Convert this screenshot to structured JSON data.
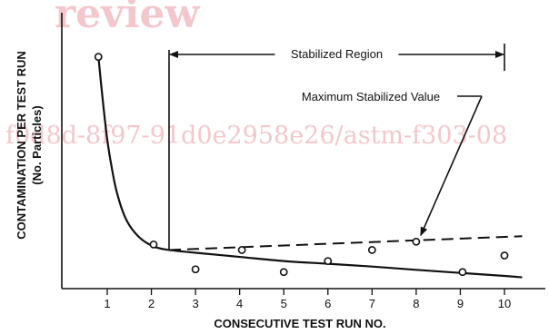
{
  "watermark": {
    "title_fragment": "review",
    "url_fragment": "f0d8d-8f97-91d0e2958e26/astm-f303-08"
  },
  "chart_data": {
    "type": "scatter",
    "title": "",
    "xlabel": "CONSECUTIVE TEST RUN NO.",
    "ylabel_line1": "CONTAMINATION PER TEST RUN",
    "ylabel_line2": "(No. Particles)",
    "xlim": [
      0,
      10.9
    ],
    "ylim": [
      0,
      100
    ],
    "xticks": [
      1,
      2,
      3,
      4,
      5,
      6,
      7,
      8,
      9,
      10
    ],
    "grid": false,
    "series": [
      {
        "x": [
          0.8,
          2.05,
          3.0,
          4.05,
          5.0,
          6.0,
          7.0,
          8.0,
          9.05,
          10.0
        ],
        "y": [
          84,
          16,
          7,
          14,
          6,
          10,
          14,
          17,
          6,
          12
        ]
      }
    ],
    "fit_curve": [
      [
        0.8,
        84
      ],
      [
        0.9,
        68
      ],
      [
        1.0,
        54
      ],
      [
        1.1,
        44
      ],
      [
        1.2,
        36
      ],
      [
        1.35,
        28
      ],
      [
        1.5,
        23
      ],
      [
        1.7,
        19
      ],
      [
        1.9,
        16.5
      ],
      [
        2.1,
        15
      ],
      [
        2.4,
        14
      ],
      [
        3.0,
        13
      ],
      [
        4.0,
        11.5
      ],
      [
        5.0,
        10
      ],
      [
        6.0,
        9
      ],
      [
        7.0,
        8
      ],
      [
        8.0,
        6.8
      ],
      [
        9.0,
        5.7
      ],
      [
        10.0,
        4.6
      ],
      [
        10.4,
        4.1
      ]
    ],
    "stabilized_line": [
      [
        2.4,
        14
      ],
      [
        10.4,
        19
      ]
    ],
    "annotations": {
      "region_label": "Stabilized Region",
      "region_start_x": 2.4,
      "region_end_x": 10.0,
      "max_label": "Maximum Stabilized Value",
      "max_point": [
        8.0,
        17
      ]
    }
  }
}
